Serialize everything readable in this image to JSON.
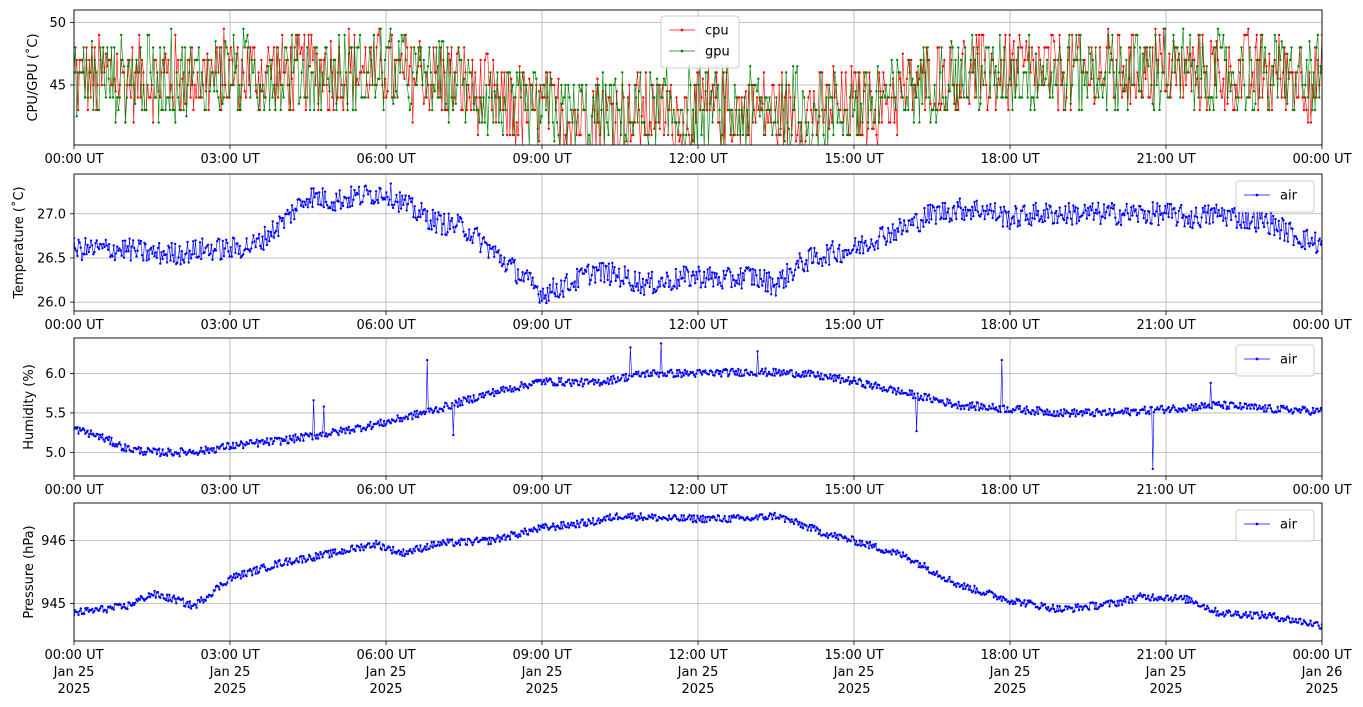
{
  "chart_data": [
    {
      "type": "line",
      "ylabel": "CPU/GPU (˚C)",
      "ylim": [
        40.2,
        51.0
      ],
      "yticks": [
        45,
        50
      ],
      "xlim": [
        "2025-01-25T00:00",
        "2025-01-26T00:00"
      ],
      "xticks": [
        "00:00 UT",
        "03:00 UT",
        "06:00 UT",
        "09:00 UT",
        "12:00 UT",
        "15:00 UT",
        "18:00 UT",
        "21:00 UT",
        "00:00 UT"
      ],
      "grid": true,
      "legend": "upper-center",
      "series": [
        {
          "name": "cpu",
          "color": "#ff0000",
          "trend_hours": [
            0,
            2,
            4,
            6,
            7.5,
            8.5,
            10,
            12,
            14,
            15.5,
            16.5,
            18,
            21,
            24
          ],
          "trend_values": [
            45.5,
            45.5,
            46.0,
            46.0,
            45.0,
            42.8,
            42.5,
            42.8,
            42.8,
            43.5,
            45.5,
            46.0,
            46.0,
            45.5
          ],
          "swing": 3.2
        },
        {
          "name": "gpu",
          "color": "#008000",
          "trend_hours": [
            0,
            2,
            4,
            6,
            7.5,
            8.5,
            10,
            12,
            14,
            15.5,
            16.5,
            18,
            21,
            24
          ],
          "trend_values": [
            45.5,
            45.5,
            46.0,
            46.0,
            45.0,
            42.8,
            42.5,
            42.8,
            42.8,
            43.5,
            45.5,
            46.0,
            46.0,
            45.5
          ],
          "swing": 3.2
        }
      ]
    },
    {
      "type": "line",
      "ylabel": "Temperature (˚C)",
      "ylim": [
        25.9,
        27.45
      ],
      "yticks": [
        "26.0",
        "26.5",
        "27.0"
      ],
      "xlim": [
        "2025-01-25T00:00",
        "2025-01-26T00:00"
      ],
      "xticks": [
        "00:00 UT",
        "03:00 UT",
        "06:00 UT",
        "09:00 UT",
        "12:00 UT",
        "15:00 UT",
        "18:00 UT",
        "21:00 UT",
        "00:00 UT"
      ],
      "grid": true,
      "legend": "upper-right",
      "series": [
        {
          "name": "air",
          "color": "#0000ff",
          "trend_hours": [
            0,
            0.5,
            1,
            1.5,
            2,
            2.5,
            3,
            3.5,
            4,
            4.5,
            5,
            5.5,
            6,
            6.5,
            7,
            7.5,
            8,
            8.5,
            9,
            9.5,
            10,
            10.5,
            11,
            11.5,
            12,
            12.5,
            13,
            13.5,
            14,
            14.5,
            15,
            15.5,
            16,
            16.5,
            17,
            17.5,
            18,
            18.5,
            19,
            19.5,
            20,
            20.5,
            21,
            21.5,
            22,
            22.5,
            23,
            23.5,
            24
          ],
          "trend_values": [
            26.6,
            26.6,
            26.6,
            26.55,
            26.55,
            26.6,
            26.6,
            26.65,
            26.9,
            27.2,
            27.15,
            27.2,
            27.25,
            27.05,
            26.9,
            26.85,
            26.6,
            26.35,
            26.1,
            26.2,
            26.35,
            26.3,
            26.2,
            26.25,
            26.3,
            26.25,
            26.3,
            26.2,
            26.45,
            26.55,
            26.6,
            26.75,
            26.85,
            27.0,
            27.05,
            27.05,
            26.95,
            27.0,
            27.0,
            27.0,
            27.0,
            27.0,
            27.0,
            26.95,
            27.0,
            26.95,
            26.9,
            26.75,
            26.65
          ],
          "swing": 0.13
        }
      ]
    },
    {
      "type": "line",
      "ylabel": "Humidity (%)",
      "ylim": [
        4.7,
        6.45
      ],
      "yticks": [
        "5.0",
        "5.5",
        "6.0"
      ],
      "xlim": [
        "2025-01-25T00:00",
        "2025-01-26T00:00"
      ],
      "xticks": [
        "00:00 UT",
        "03:00 UT",
        "06:00 UT",
        "09:00 UT",
        "12:00 UT",
        "15:00 UT",
        "18:00 UT",
        "21:00 UT",
        "00:00 UT"
      ],
      "grid": true,
      "legend": "upper-right",
      "series": [
        {
          "name": "air",
          "color": "#0000ff",
          "trend_hours": [
            0,
            0.5,
            1,
            1.5,
            2,
            2.5,
            3,
            4,
            5,
            6,
            7,
            8,
            9,
            10,
            11,
            12,
            13,
            14,
            15,
            16,
            17,
            18,
            19,
            20,
            21,
            22,
            23,
            24
          ],
          "trend_values": [
            5.3,
            5.2,
            5.05,
            5.0,
            5.0,
            5.02,
            5.08,
            5.15,
            5.25,
            5.38,
            5.55,
            5.75,
            5.9,
            5.88,
            6.0,
            6.0,
            6.02,
            6.0,
            5.9,
            5.75,
            5.6,
            5.55,
            5.5,
            5.5,
            5.55,
            5.6,
            5.55,
            5.52
          ],
          "swing": 0.05,
          "spikes": [
            [
              4.6,
              5.66
            ],
            [
              4.8,
              5.58
            ],
            [
              6.8,
              6.17
            ],
            [
              7.3,
              5.22
            ],
            [
              10.7,
              6.33
            ],
            [
              11.3,
              6.38
            ],
            [
              13.15,
              6.28
            ],
            [
              16.2,
              5.27
            ],
            [
              17.85,
              6.17
            ],
            [
              20.75,
              4.79
            ],
            [
              21.85,
              5.88
            ]
          ]
        }
      ]
    },
    {
      "type": "line",
      "ylabel": "Pressure (hPa)",
      "ylim": [
        944.4,
        946.6
      ],
      "yticks": [
        "945",
        "946"
      ],
      "xlim": [
        "2025-01-25T00:00",
        "2025-01-26T00:00"
      ],
      "xticks": [
        "00:00 UT",
        "03:00 UT",
        "06:00 UT",
        "09:00 UT",
        "12:00 UT",
        "15:00 UT",
        "18:00 UT",
        "21:00 UT",
        "00:00 UT"
      ],
      "xticks_date": [
        "Jan 25",
        "Jan 25",
        "Jan 25",
        "Jan 25",
        "Jan 25",
        "Jan 25",
        "Jan 25",
        "Jan 25",
        "Jan 26"
      ],
      "xticks_year": [
        "2025",
        "2025",
        "2025",
        "2025",
        "2025",
        "2025",
        "2025",
        "2025",
        "2025"
      ],
      "grid": true,
      "legend": "upper-right",
      "series": [
        {
          "name": "air",
          "color": "#0000ff",
          "trend_hours": [
            0,
            1,
            1.5,
            2,
            2.3,
            3,
            4,
            5,
            5.8,
            6.3,
            7,
            8,
            9,
            10,
            10.5,
            11.5,
            12,
            13,
            13.5,
            14.5,
            15,
            16,
            17,
            18,
            19,
            20,
            20.5,
            21,
            21.5,
            22,
            23,
            24
          ],
          "trend_values": [
            944.85,
            944.95,
            945.15,
            945.05,
            944.95,
            945.4,
            945.65,
            945.8,
            945.95,
            945.8,
            945.95,
            946.0,
            946.2,
            946.3,
            946.4,
            946.35,
            946.35,
            946.35,
            946.4,
            946.1,
            946.0,
            945.75,
            945.3,
            945.05,
            944.9,
            945.0,
            945.1,
            945.1,
            945.05,
            944.85,
            944.8,
            944.65
          ],
          "swing": 0.06
        }
      ]
    }
  ]
}
